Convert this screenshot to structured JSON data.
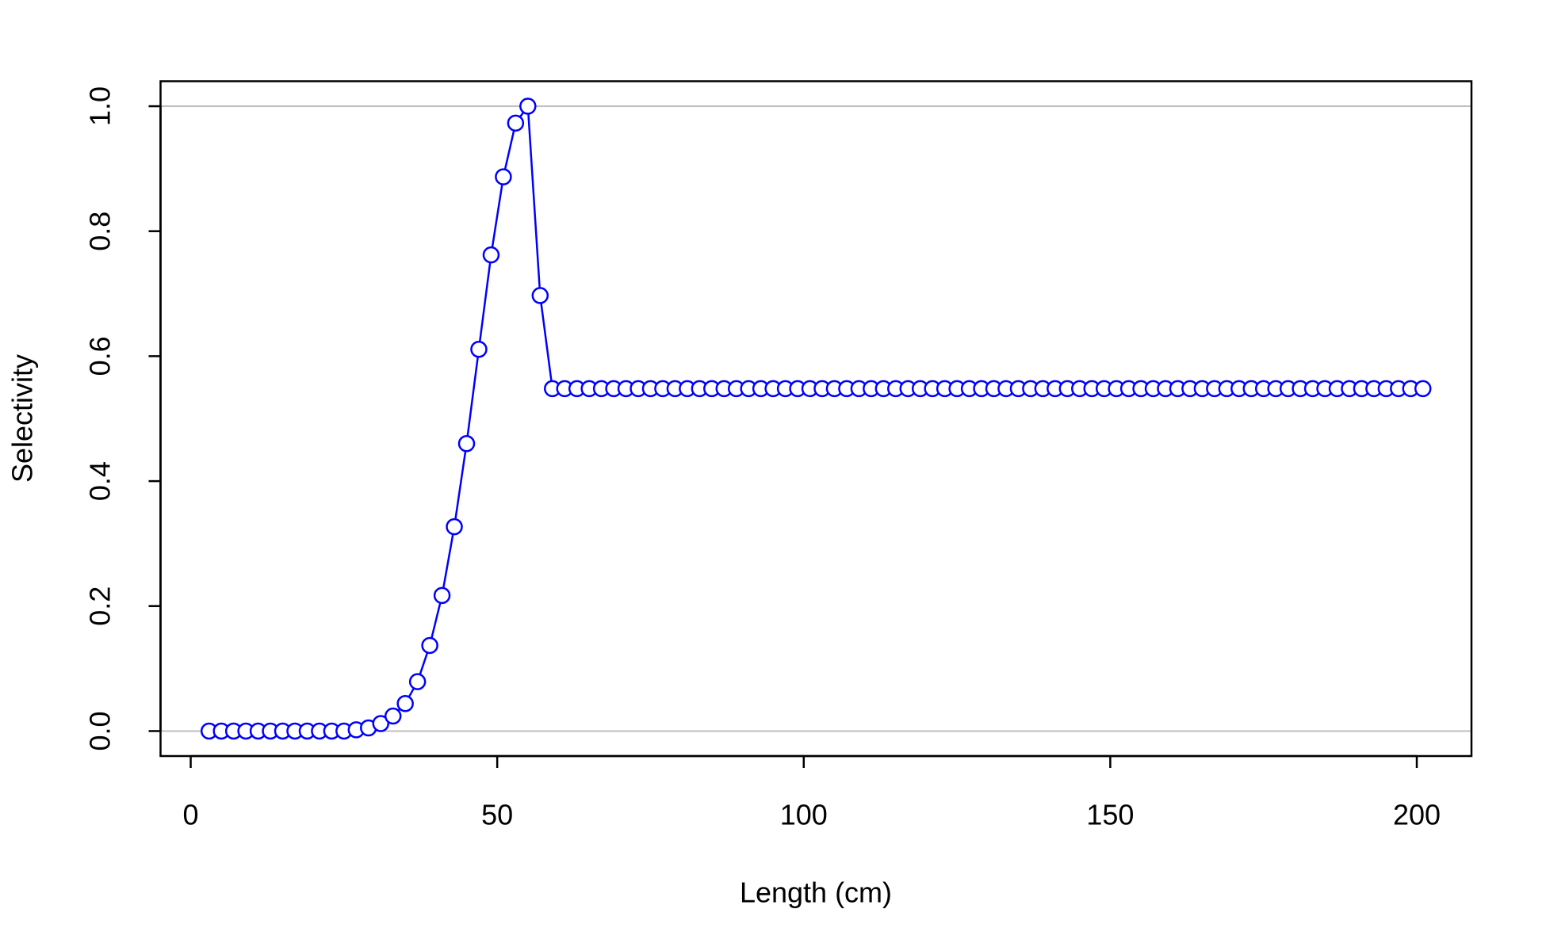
{
  "chart_data": {
    "type": "line",
    "xlabel": "Length (cm)",
    "ylabel": "Selectivity",
    "x": [
      3,
      5,
      7,
      9,
      11,
      13,
      15,
      17,
      19,
      21,
      23,
      25,
      27,
      29,
      31,
      33,
      35,
      37,
      39,
      41,
      43,
      45,
      47,
      49,
      51,
      53,
      55,
      57,
      59,
      61,
      63,
      65,
      67,
      69,
      71,
      73,
      75,
      77,
      79,
      81,
      83,
      85,
      87,
      89,
      91,
      93,
      95,
      97,
      99,
      101,
      103,
      105,
      107,
      109,
      111,
      113,
      115,
      117,
      119,
      121,
      123,
      125,
      127,
      129,
      131,
      133,
      135,
      137,
      139,
      141,
      143,
      145,
      147,
      149,
      151,
      153,
      155,
      157,
      159,
      161,
      163,
      165,
      167,
      169,
      171,
      173,
      175,
      177,
      179,
      181,
      183,
      185,
      187,
      189,
      191,
      193,
      195,
      197,
      199,
      201
    ],
    "series": [
      {
        "color": "#0000ff",
        "values": [
          0,
          0,
          0,
          0,
          0,
          0,
          0,
          0,
          0,
          0,
          0,
          0,
          0.002,
          0.005,
          0.012,
          0.024,
          0.044,
          0.079,
          0.137,
          0.217,
          0.327,
          0.46,
          0.611,
          0.762,
          0.887,
          0.973,
          1,
          0.697,
          0.548,
          0.548,
          0.548,
          0.548,
          0.548,
          0.548,
          0.548,
          0.548,
          0.548,
          0.548,
          0.548,
          0.548,
          0.548,
          0.548,
          0.548,
          0.548,
          0.548,
          0.548,
          0.548,
          0.548,
          0.548,
          0.548,
          0.548,
          0.548,
          0.548,
          0.548,
          0.548,
          0.548,
          0.548,
          0.548,
          0.548,
          0.548,
          0.548,
          0.548,
          0.548,
          0.548,
          0.548,
          0.548,
          0.548,
          0.548,
          0.548,
          0.548,
          0.548,
          0.548,
          0.548,
          0.548,
          0.548,
          0.548,
          0.548,
          0.548,
          0.548,
          0.548,
          0.548,
          0.548,
          0.548,
          0.548,
          0.548,
          0.548,
          0.548,
          0.548,
          0.548,
          0.548,
          0.548,
          0.548,
          0.548,
          0.548,
          0.548,
          0.548,
          0.548,
          0.548,
          0.548,
          0.548
        ]
      }
    ],
    "xlim": [
      -4.92,
      208.92
    ],
    "ylim": [
      -0.04,
      1.04
    ],
    "xticks": [
      0,
      50,
      100,
      150,
      200
    ],
    "yticks": [
      {
        "value": 0,
        "label": "0.0"
      },
      {
        "value": 0.2,
        "label": "0.2"
      },
      {
        "value": 0.4,
        "label": "0.4"
      },
      {
        "value": 0.6,
        "label": "0.6"
      },
      {
        "value": 0.8,
        "label": "0.8"
      },
      {
        "value": 1,
        "label": "1.0"
      }
    ],
    "reference_lines": [
      0,
      1
    ],
    "reference_line_color": "#bebebe",
    "markers": "open-circle"
  }
}
